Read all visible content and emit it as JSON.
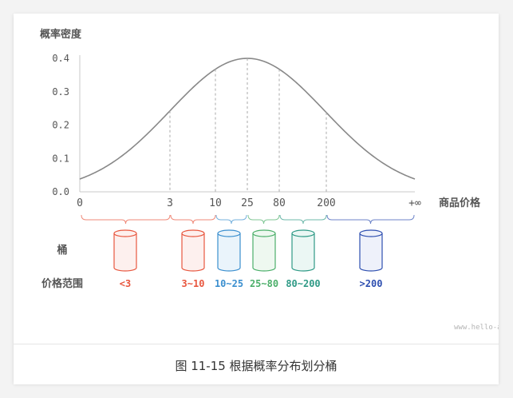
{
  "chart_data": {
    "type": "line",
    "ylabel": "概率密度",
    "xlabel": "商品价格",
    "ylim": [
      0,
      0.4
    ],
    "yticks": [
      "0.0",
      "0.1",
      "0.2",
      "0.3",
      "0.4"
    ],
    "xticks": [
      "0",
      "3",
      "10",
      "25",
      "80",
      "200",
      "+∞"
    ],
    "curve": "normal-distribution",
    "grid": false
  },
  "diagram": {
    "bucket_label": "桶",
    "range_label": "价格范围",
    "buckets": [
      {
        "range": "<3",
        "color": "#e8573f",
        "fill": "#fdf0ee"
      },
      {
        "range": "3~10",
        "color": "#e8573f",
        "fill": "#fdf0ee"
      },
      {
        "range": "10~25",
        "color": "#3b8fcf",
        "fill": "#eaf4fb"
      },
      {
        "range": "25~80",
        "color": "#4caf6a",
        "fill": "#eef8f0"
      },
      {
        "range": "80~200",
        "color": "#2f9a86",
        "fill": "#ebf7f4"
      },
      {
        "range": ">200",
        "color": "#2e4fb0",
        "fill": "#eef1fa"
      }
    ],
    "watermark": "www.hello-a"
  },
  "caption": "图 11-15   根据概率分布划分桶"
}
